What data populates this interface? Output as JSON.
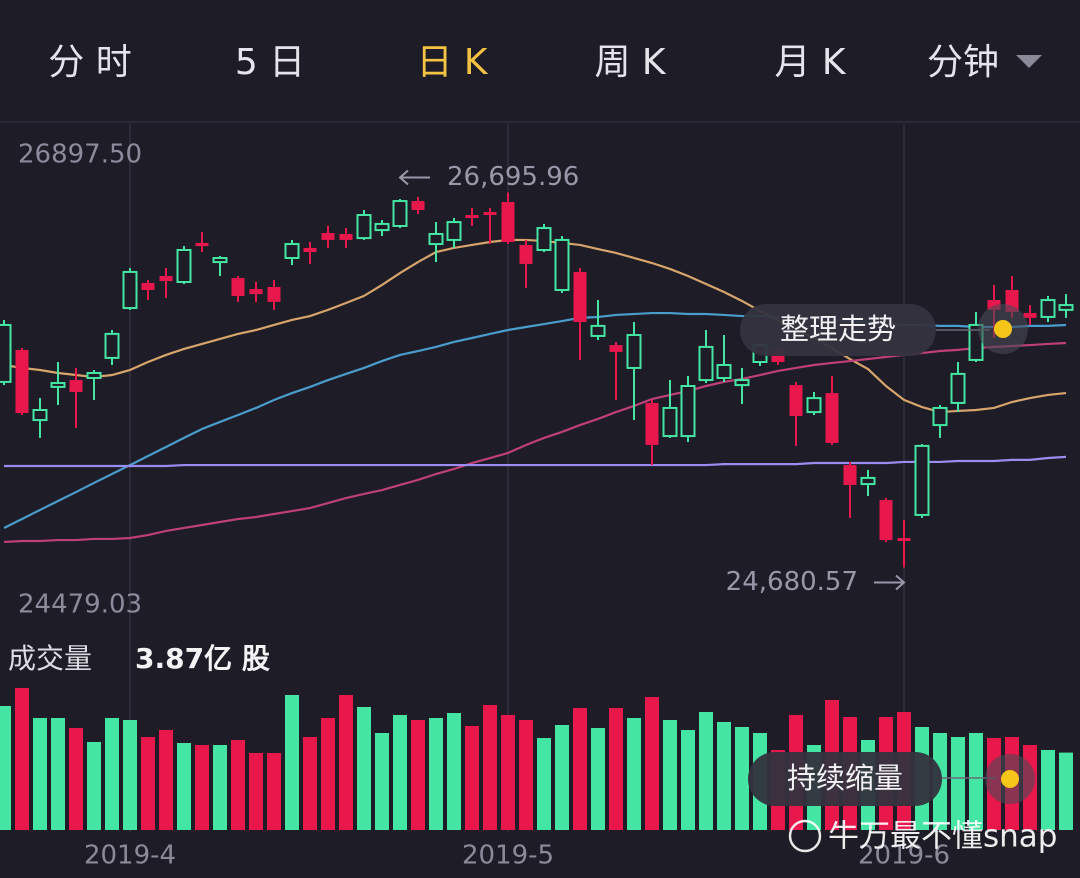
{
  "tabs": {
    "items": [
      "分 时",
      "5 日",
      "日 K",
      "周 K",
      "月 K",
      "分钟"
    ],
    "active": 2,
    "color": "#e4e4ea",
    "active_color": "#f5c342"
  },
  "watermark": "牛万最不懂snap",
  "chart_data": [
    {
      "type": "candlestick",
      "categories": [
        null,
        null,
        null,
        null,
        null,
        null,
        null,
        "2019-4",
        null,
        null,
        null,
        null,
        null,
        null,
        null,
        null,
        null,
        null,
        null,
        null,
        null,
        null,
        null,
        null,
        null,
        null,
        null,
        null,
        "2019-5",
        null,
        null,
        null,
        null,
        null,
        null,
        null,
        null,
        null,
        null,
        null,
        null,
        null,
        null,
        null,
        null,
        null,
        null,
        null,
        null,
        null,
        "2019-6",
        null,
        null,
        null,
        null,
        null,
        null,
        null,
        null,
        null
      ],
      "open": [
        25678,
        25850,
        25473,
        25651,
        25688,
        25699,
        25807,
        26075,
        26210,
        26247,
        26215,
        26425,
        26322,
        26236,
        26177,
        26188,
        26344,
        26398,
        26478,
        26473,
        26451,
        26494,
        26516,
        26650,
        26419,
        26441,
        26575,
        26591,
        26645,
        26414,
        26387,
        26172,
        26269,
        25925,
        25876,
        25753,
        25565,
        25387,
        25387,
        25688,
        25699,
        25661,
        25785,
        25850,
        25661,
        25516,
        25618,
        25231,
        25129,
        25043,
        24839,
        24963,
        25446,
        25565,
        25796,
        26118,
        26172,
        26048,
        26027,
        26065
      ],
      "high": [
        26011,
        25860,
        25591,
        25785,
        25753,
        25742,
        25957,
        26290,
        26226,
        26290,
        26408,
        26484,
        26355,
        26247,
        26215,
        26226,
        26441,
        26430,
        26516,
        26505,
        26602,
        26548,
        26661,
        26672,
        26537,
        26559,
        26613,
        26613,
        26695.96,
        26441,
        26527,
        26462,
        26290,
        26118,
        25893,
        26000,
        25581,
        25688,
        25710,
        25957,
        25930,
        25753,
        25893,
        25860,
        25678,
        25624,
        25710,
        25248,
        25205,
        25054,
        24936,
        25344,
        25554,
        25785,
        26054,
        26199,
        26247,
        26091,
        26140,
        26150
      ],
      "low": [
        25661,
        25500,
        25377,
        25554,
        25430,
        25581,
        25769,
        26065,
        26118,
        26129,
        26204,
        26376,
        26247,
        26108,
        26108,
        26065,
        26306,
        26312,
        26398,
        26398,
        26441,
        26462,
        26505,
        26580,
        26322,
        26398,
        26516,
        26419,
        26419,
        26183,
        26376,
        26156,
        25796,
        25903,
        25581,
        25473,
        25231,
        25377,
        25355,
        25672,
        25678,
        25559,
        25764,
        25769,
        25334,
        25500,
        25339,
        24947,
        25065,
        24818,
        24680.57,
        24947,
        25377,
        25516,
        25785,
        25914,
        26022,
        25984,
        26000,
        26022
      ],
      "close": [
        25984,
        25511,
        25527,
        25672,
        25624,
        25726,
        25936,
        26269,
        26172,
        26220,
        26387,
        26408,
        26344,
        26140,
        26150,
        26108,
        26419,
        26376,
        26441,
        26441,
        26575,
        26527,
        26650,
        26602,
        26473,
        26537,
        26559,
        26575,
        26430,
        26312,
        26505,
        26441,
        26000,
        25979,
        25839,
        25930,
        25339,
        25538,
        25656,
        25866,
        25769,
        25688,
        25876,
        25785,
        25495,
        25591,
        25350,
        25124,
        25162,
        24828,
        24823,
        25334,
        25538,
        25721,
        25984,
        26065,
        26054,
        26022,
        26118,
        26091
      ],
      "up_color": "#45e6a4",
      "down_color": "#e8184d",
      "series": [
        {
          "color": "#d7a56c",
          "values": [
            25769,
            25753,
            25742,
            25726,
            25715,
            25704,
            25715,
            25742,
            25785,
            25823,
            25855,
            25882,
            25909,
            25936,
            25957,
            25984,
            26011,
            26032,
            26065,
            26102,
            26140,
            26199,
            26263,
            26322,
            26376,
            26398,
            26414,
            26430,
            26441,
            26441,
            26435,
            26425,
            26414,
            26392,
            26371,
            26344,
            26317,
            26285,
            26247,
            26204,
            26161,
            26113,
            26059,
            26011,
            25962,
            25914,
            25860,
            25801,
            25747,
            25656,
            25581,
            25543,
            25516,
            25522,
            25527,
            25538,
            25570,
            25591,
            25608,
            25618
          ]
        },
        {
          "color": "#4a9ccc",
          "values": [
            24893,
            24941,
            24990,
            25038,
            25086,
            25135,
            25183,
            25231,
            25280,
            25328,
            25377,
            25425,
            25463,
            25500,
            25538,
            25581,
            25618,
            25651,
            25688,
            25721,
            25753,
            25790,
            25823,
            25844,
            25866,
            25893,
            25914,
            25936,
            25957,
            25973,
            25989,
            26005,
            26022,
            26027,
            26038,
            26043,
            26048,
            26048,
            26043,
            26043,
            26038,
            26032,
            26032,
            26027,
            26022,
            26016,
            26011,
            26005,
            26000,
            25989,
            25984,
            25984,
            25979,
            25979,
            25973,
            25973,
            25973,
            25979,
            25979,
            25984
          ]
        },
        {
          "color": "#bf3f78",
          "values": [
            24818,
            24823,
            24823,
            24828,
            24828,
            24834,
            24834,
            24839,
            24855,
            24877,
            24893,
            24909,
            24925,
            24941,
            24952,
            24968,
            24984,
            25000,
            25027,
            25054,
            25076,
            25097,
            25124,
            25151,
            25183,
            25210,
            25242,
            25269,
            25296,
            25339,
            25377,
            25409,
            25446,
            25479,
            25516,
            25549,
            25586,
            25608,
            25629,
            25656,
            25678,
            25694,
            25715,
            25737,
            25753,
            25769,
            25780,
            25790,
            25801,
            25812,
            25823,
            25833,
            25844,
            25850,
            25860,
            25866,
            25871,
            25876,
            25882,
            25887
          ]
        },
        {
          "color": "#9a8cf0",
          "values": [
            25226,
            25226,
            25226,
            25226,
            25226,
            25226,
            25226,
            25226,
            25226,
            25226,
            25231,
            25231,
            25231,
            25231,
            25231,
            25231,
            25231,
            25231,
            25231,
            25231,
            25231,
            25231,
            25231,
            25231,
            25231,
            25231,
            25231,
            25231,
            25231,
            25231,
            25231,
            25231,
            25231,
            25231,
            25231,
            25231,
            25231,
            25231,
            25231,
            25231,
            25236,
            25236,
            25236,
            25236,
            25236,
            25242,
            25242,
            25242,
            25242,
            25242,
            25248,
            25248,
            25248,
            25253,
            25253,
            25253,
            25259,
            25259,
            25269,
            25275
          ]
        }
      ],
      "ylim": [
        24479.03,
        26897.5
      ],
      "yticks": [
        {
          "value": 26897.5,
          "label": "26897.50"
        },
        24479.03
      ],
      "grid": false,
      "x_grid": true,
      "max_label": "26,695.96",
      "min_label": "24,680.57",
      "badge": "整理走势"
    },
    {
      "type": "bar",
      "title": "成交量",
      "current_label": "3.87亿 股",
      "values": [
        6.2,
        7.1,
        5.6,
        5.6,
        5.1,
        4.4,
        5.6,
        5.5,
        4.65,
        5.0,
        4.35,
        4.25,
        4.25,
        4.5,
        3.85,
        3.85,
        6.75,
        4.65,
        5.6,
        6.75,
        6.15,
        4.85,
        5.75,
        5.5,
        5.6,
        5.85,
        5.2,
        6.25,
        5.75,
        5.5,
        4.6,
        5.25,
        6.1,
        5.1,
        6.1,
        5.6,
        6.65,
        5.5,
        5.0,
        5.9,
        5.4,
        5.15,
        4.85,
        4.0,
        5.75,
        4.25,
        6.5,
        5.65,
        4.5,
        5.65,
        5.9,
        5.15,
        4.85,
        4.65,
        4.85,
        4.6,
        4.65,
        4.25,
        4.0,
        3.87
      ],
      "ylim": [
        0,
        7.5
      ],
      "badge": "持续缩量"
    }
  ]
}
